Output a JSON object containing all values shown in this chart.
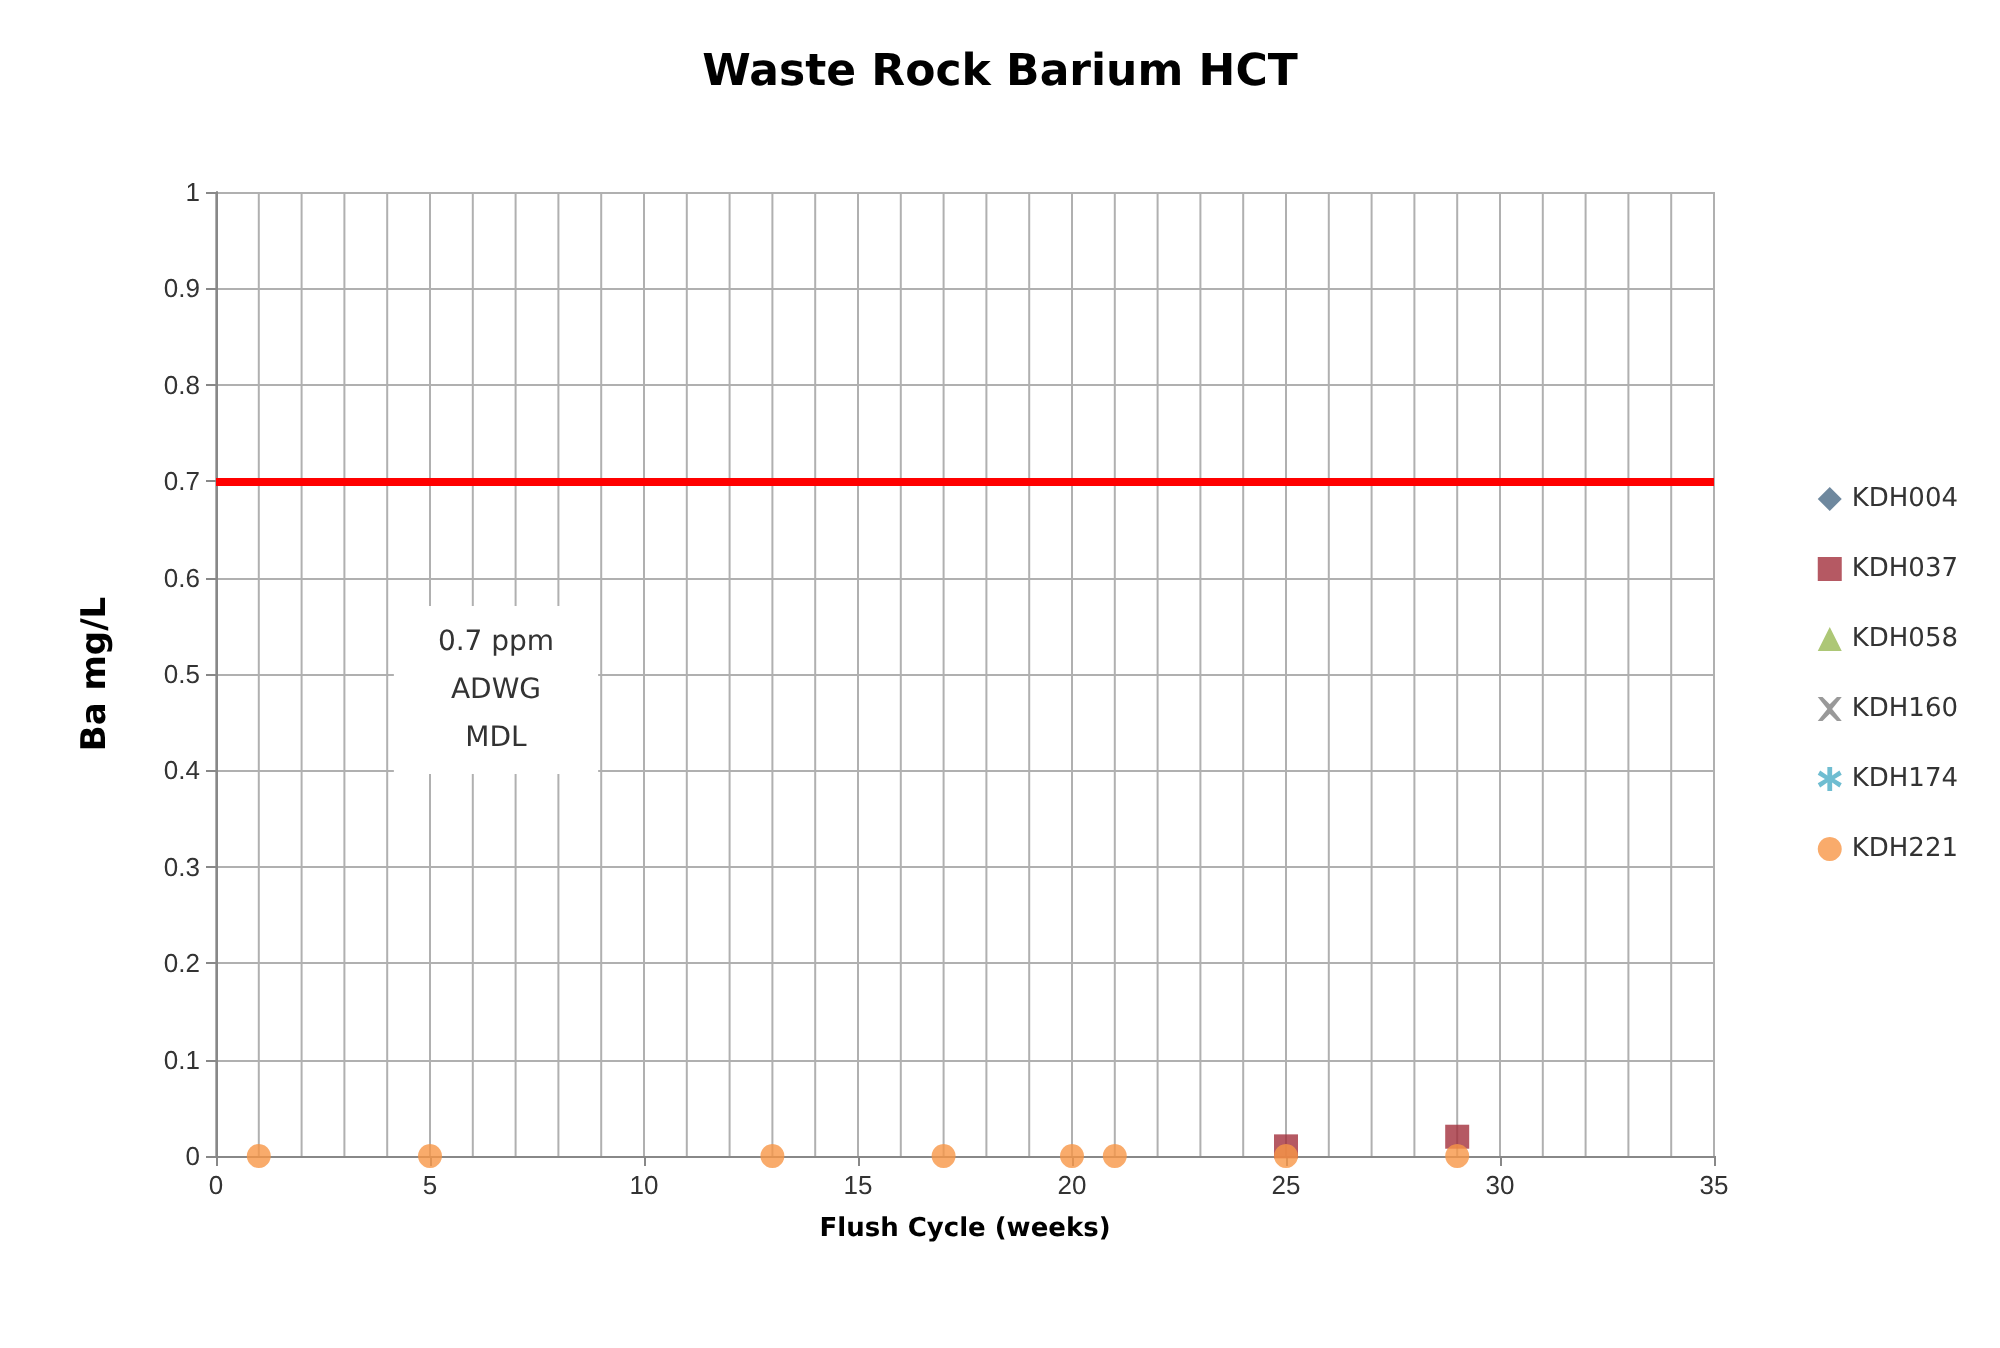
{
  "chart_data": {
    "type": "scatter",
    "title": "Waste Rock Barium HCT",
    "xlabel": "Flush Cycle (weeks)",
    "ylabel": "Ba mg/L",
    "x": [
      1,
      5,
      13,
      17,
      20,
      21,
      25,
      29
    ],
    "series": [
      {
        "name": "KDH004",
        "color": "#4a6a86",
        "marker": "diamond",
        "values": [
          null,
          null,
          null,
          null,
          null,
          null,
          null,
          null
        ]
      },
      {
        "name": "KDH037",
        "color": "#a3303c",
        "marker": "square",
        "values": [
          null,
          null,
          null,
          null,
          null,
          null,
          0.01,
          0.02
        ]
      },
      {
        "name": "KDH058",
        "color": "#98b954",
        "marker": "triangle",
        "values": [
          null,
          null,
          null,
          null,
          null,
          null,
          null,
          null
        ]
      },
      {
        "name": "KDH160",
        "color": "#7f7f7f",
        "marker": "cross",
        "values": [
          null,
          null,
          null,
          null,
          null,
          null,
          null,
          null
        ]
      },
      {
        "name": "KDH174",
        "color": "#4bacc6",
        "marker": "star",
        "values": [
          null,
          null,
          null,
          null,
          null,
          null,
          null,
          null
        ]
      },
      {
        "name": "KDH221",
        "color": "#f79646",
        "marker": "circle",
        "values": [
          0,
          0,
          0,
          0,
          0,
          0,
          0,
          0
        ]
      }
    ],
    "xlim": [
      0,
      35
    ],
    "xticks": [
      0,
      {
        "value": 1,
        "label": null
      },
      {
        "value": 2,
        "label": null
      },
      {
        "value": 3,
        "label": null
      },
      {
        "value": 4,
        "label": null
      },
      5,
      {
        "value": 6,
        "label": null
      },
      {
        "value": 7,
        "label": null
      },
      {
        "value": 8,
        "label": null
      },
      {
        "value": 9,
        "label": null
      },
      10,
      {
        "value": 11,
        "label": null
      },
      {
        "value": 12,
        "label": null
      },
      {
        "value": 13,
        "label": null
      },
      {
        "value": 14,
        "label": null
      },
      15,
      {
        "value": 16,
        "label": null
      },
      {
        "value": 17,
        "label": null
      },
      {
        "value": 18,
        "label": null
      },
      {
        "value": 19,
        "label": null
      },
      20,
      {
        "value": 21,
        "label": null
      },
      {
        "value": 22,
        "label": null
      },
      {
        "value": 23,
        "label": null
      },
      {
        "value": 24,
        "label": null
      },
      25,
      {
        "value": 26,
        "label": null
      },
      {
        "value": 27,
        "label": null
      },
      {
        "value": 28,
        "label": null
      },
      {
        "value": 29,
        "label": null
      },
      30,
      {
        "value": 31,
        "label": null
      },
      {
        "value": 32,
        "label": null
      },
      {
        "value": 33,
        "label": null
      },
      {
        "value": 34,
        "label": null
      },
      35
    ],
    "ylim": [
      0,
      1
    ],
    "yticks": [
      0,
      0.1,
      0.2,
      0.3,
      0.4,
      0.5,
      0.6,
      0.7,
      0.8,
      0.9,
      1
    ],
    "ref_lines": [
      {
        "axis": "y",
        "value": 0.7,
        "color": "#ff0000",
        "line_style": "solid"
      }
    ],
    "annotations": [
      "0.7 ppm\nADWG\nMDL"
    ],
    "grid": true,
    "legend": "right"
  }
}
